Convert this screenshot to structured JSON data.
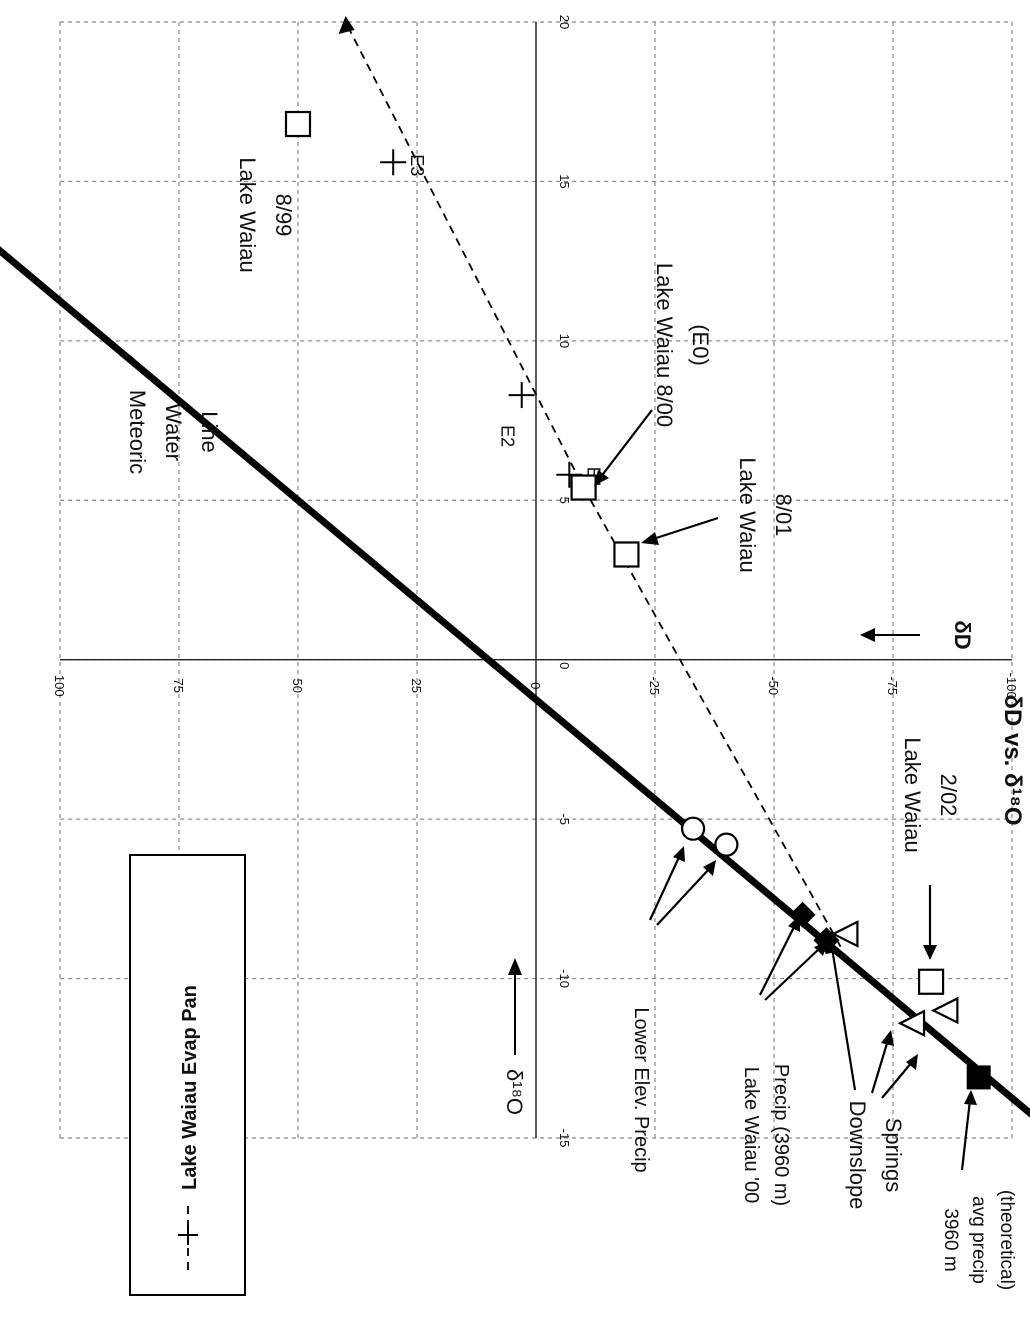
{
  "chart_data": {
    "type": "scatter",
    "title": "δD vs. δ¹⁸O",
    "xlabel": "δ¹⁸O",
    "ylabel": "δD",
    "xlim": [
      -15,
      20
    ],
    "ylim": [
      -100,
      100
    ],
    "x_ticks": [
      -15,
      -10,
      -5,
      0,
      5,
      10,
      15,
      20
    ],
    "y_ticks": [
      100,
      75,
      50,
      25,
      0,
      -25,
      -50,
      -75,
      -100
    ],
    "grid": true,
    "legend_position": "left",
    "legend": [
      {
        "label": "Lake Waiau Evap Pan",
        "marker": "plus",
        "line": "dashed"
      }
    ],
    "series": [
      {
        "name": "Lake Waiau Evap Pan",
        "marker": "plus",
        "points": [
          {
            "x": 5.8,
            "y": -7,
            "label": "E1"
          },
          {
            "x": 8.3,
            "y": 3,
            "label": "E2"
          },
          {
            "x": 15.6,
            "y": 30,
            "label": "E3"
          }
        ]
      },
      {
        "marker": "open-square",
        "points": [
          {
            "x": 16.8,
            "y": 50
          },
          {
            "x": 5.4,
            "y": -10
          },
          {
            "x": 3.3,
            "y": -19
          },
          {
            "x": -10.1,
            "y": -83
          }
        ]
      },
      {
        "marker": "open-circle",
        "points": [
          {
            "x": -5.3,
            "y": -33
          },
          {
            "x": -5.8,
            "y": -40
          }
        ]
      },
      {
        "marker": "filled-diamond",
        "points": [
          {
            "x": -8.0,
            "y": -56
          },
          {
            "x": -8.8,
            "y": -61
          }
        ]
      },
      {
        "marker": "open-triangle",
        "points": [
          {
            "x": -8.6,
            "y": -65
          },
          {
            "x": -11.4,
            "y": -79
          },
          {
            "x": -11.0,
            "y": -86
          }
        ]
      },
      {
        "marker": "filled-square",
        "points": [
          {
            "x": -13.1,
            "y": -93
          }
        ]
      }
    ],
    "lines": [
      {
        "name": "Meteoric Water Line",
        "style": "thick-solid",
        "slope": 8,
        "intercept": 10
      },
      {
        "style": "dashed",
        "points": [
          [
            -9,
            -64
          ],
          [
            5.4,
            -10
          ],
          [
            20,
            40
          ]
        ]
      }
    ],
    "annotations": {
      "mwl": [
        "Meteoric",
        "Water",
        "Line"
      ],
      "lw899": [
        "Lake Waiau",
        "8/99"
      ],
      "lw800": [
        "Lake Waiau 8/00",
        "(E0)"
      ],
      "lw801": [
        "Lake Waiau",
        "8/01"
      ],
      "lw202": [
        "Lake Waiau",
        "2/02"
      ],
      "lower_elev": "Lower Elev. Precip",
      "lw00_precip": [
        "Lake Waiau '00",
        "Precip (3960 m)"
      ],
      "downslope": [
        "Downslope",
        "Springs"
      ],
      "avg_precip": [
        "3960 m",
        "avg precip",
        "(theoretical)"
      ],
      "x_axis_arrow_label": "δ¹⁸O",
      "y_axis_arrow_label": "δD"
    }
  }
}
